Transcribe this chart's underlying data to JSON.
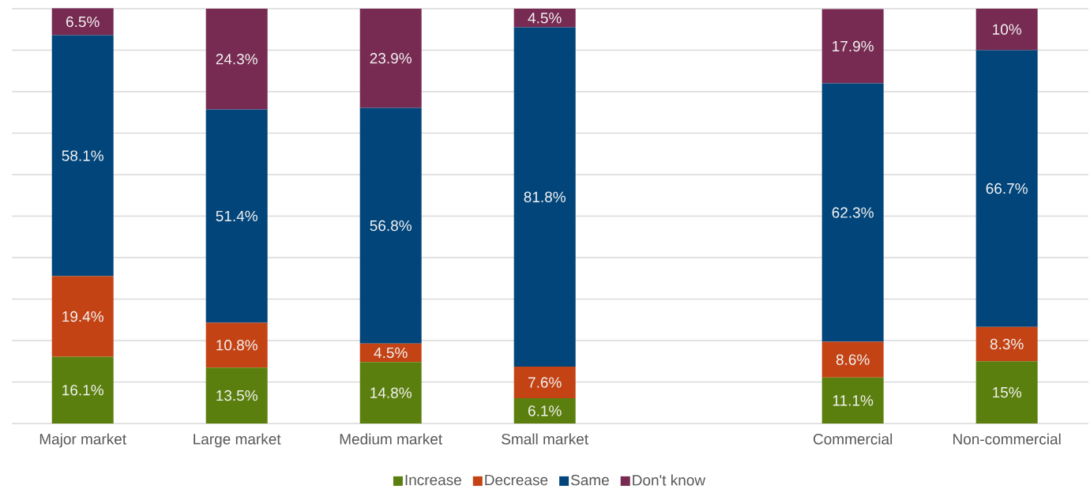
{
  "chart_data": {
    "type": "bar",
    "stacked": true,
    "categories": [
      "Major market",
      "Large market",
      "Medium market",
      "Small market",
      null,
      "Commercial",
      "Non-commercial"
    ],
    "series": [
      {
        "name": "Increase",
        "color": "#5b7f0e",
        "values": [
          16.1,
          13.5,
          14.8,
          6.1,
          null,
          11.1,
          15
        ],
        "value_labels": [
          "16.1%",
          "13.5%",
          "14.8%",
          "6.1%",
          null,
          "11.1%",
          "15%"
        ]
      },
      {
        "name": "Decrease",
        "color": "#c44315",
        "values": [
          19.4,
          10.8,
          4.5,
          7.6,
          null,
          8.6,
          8.3
        ],
        "value_labels": [
          "19.4%",
          "10.8%",
          "4.5%",
          "7.6%",
          null,
          "8.6%",
          "8.3%"
        ]
      },
      {
        "name": "Same",
        "color": "#02457a",
        "values": [
          58.1,
          51.4,
          56.8,
          81.8,
          null,
          62.3,
          66.7
        ],
        "value_labels": [
          "58.1%",
          "51.4%",
          "56.8%",
          "81.8%",
          null,
          "62.3%",
          "66.7%"
        ]
      },
      {
        "name": "Don't know",
        "color": "#772a52",
        "values": [
          6.5,
          24.3,
          23.9,
          4.5,
          null,
          17.9,
          10
        ],
        "value_labels": [
          "6.5%",
          "24.3%",
          "23.9%",
          "4.5%",
          null,
          "17.9%",
          "10%"
        ]
      }
    ],
    "ylim": [
      0,
      100
    ],
    "yticks": [
      {
        "value": 0,
        "label": null
      },
      {
        "value": 10,
        "label": null
      },
      {
        "value": 20,
        "label": null
      },
      {
        "value": 30,
        "label": null
      },
      {
        "value": 40,
        "label": null
      },
      {
        "value": 50,
        "label": null
      },
      {
        "value": 60,
        "label": null
      },
      {
        "value": 70,
        "label": null
      },
      {
        "value": 80,
        "label": null
      },
      {
        "value": 90,
        "label": null
      },
      {
        "value": 100,
        "label": null
      }
    ],
    "grid": "y",
    "legend": "bottom",
    "tick_labels": "x"
  }
}
